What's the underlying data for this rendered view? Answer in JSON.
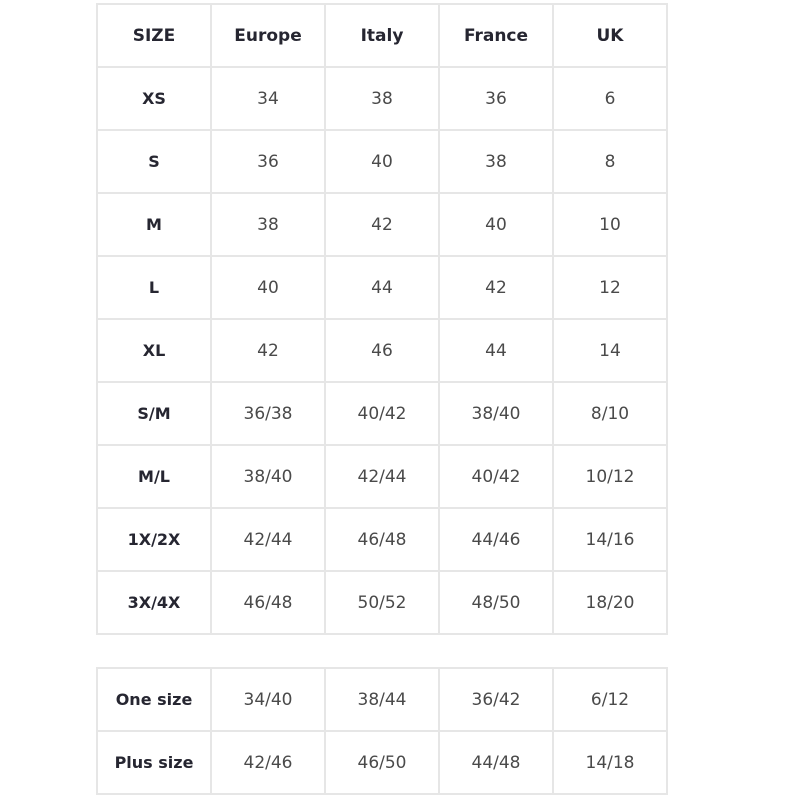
{
  "main_table": {
    "headers": [
      "SIZE",
      "Europe",
      "Italy",
      "France",
      "UK"
    ],
    "rows": [
      [
        "XS",
        "34",
        "38",
        "36",
        "6"
      ],
      [
        "S",
        "36",
        "40",
        "38",
        "8"
      ],
      [
        "M",
        "38",
        "42",
        "40",
        "10"
      ],
      [
        "L",
        "40",
        "44",
        "42",
        "12"
      ],
      [
        "XL",
        "42",
        "46",
        "44",
        "14"
      ],
      [
        "S/M",
        "36/38",
        "40/42",
        "38/40",
        "8/10"
      ],
      [
        "M/L",
        "38/40",
        "42/44",
        "40/42",
        "10/12"
      ],
      [
        "1X/2X",
        "42/44",
        "46/48",
        "44/46",
        "14/16"
      ],
      [
        "3X/4X",
        "46/48",
        "50/52",
        "48/50",
        "18/20"
      ]
    ]
  },
  "extra_table": {
    "rows": [
      [
        "One size",
        "34/40",
        "38/44",
        "36/42",
        "6/12"
      ],
      [
        "Plus size",
        "42/46",
        "46/50",
        "44/48",
        "14/18"
      ]
    ]
  }
}
